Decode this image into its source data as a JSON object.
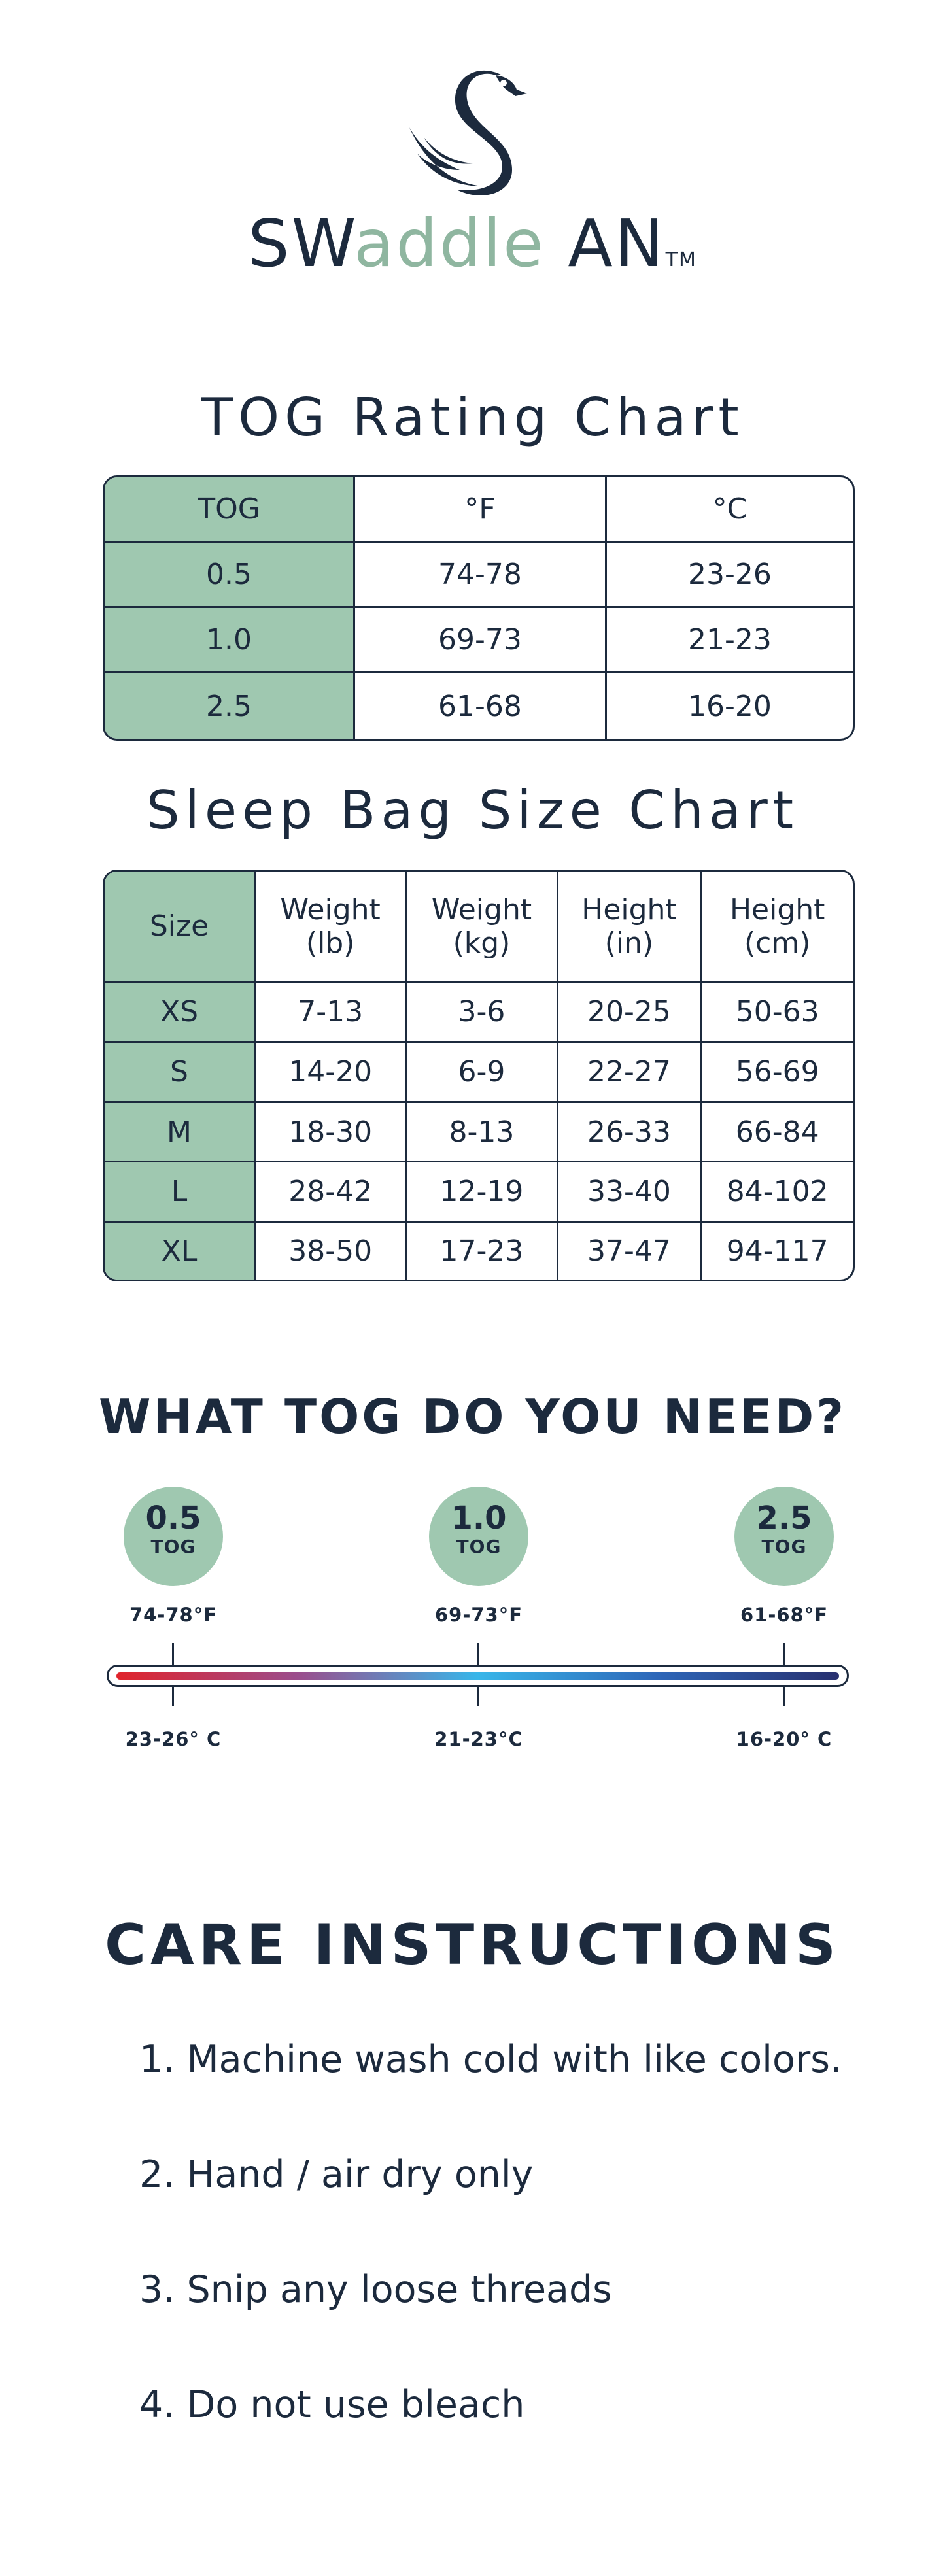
{
  "brand": {
    "name_part1": "SW",
    "name_part2": "addle",
    "name_part3": " AN",
    "trademark": "TM",
    "accent_color": "#8fb6a0",
    "text_color": "#1c2a3d",
    "logo_icon": "swan-icon"
  },
  "tog_rating_chart": {
    "title": "TOG Rating Chart",
    "headers": [
      "TOG",
      "°F",
      "°C"
    ],
    "rows": [
      [
        "0.5",
        "74-78",
        "23-26"
      ],
      [
        "1.0",
        "69-73",
        "21-23"
      ],
      [
        "2.5",
        "61-68",
        "16-20"
      ]
    ]
  },
  "size_chart": {
    "title": "Sleep Bag Size Chart",
    "headers": [
      [
        "Size",
        ""
      ],
      [
        "Weight",
        "(lb)"
      ],
      [
        "Weight",
        "(kg)"
      ],
      [
        "Height",
        "(in)"
      ],
      [
        "Height",
        "(cm)"
      ]
    ],
    "rows": [
      [
        "XS",
        "7-13",
        "3-6",
        "20-25",
        "50-63"
      ],
      [
        "S",
        "14-20",
        "6-9",
        "22-27",
        "56-69"
      ],
      [
        "M",
        "18-30",
        "8-13",
        "26-33",
        "66-84"
      ],
      [
        "L",
        "28-42",
        "12-19",
        "33-40",
        "84-102"
      ],
      [
        "XL",
        "38-50",
        "17-23",
        "37-47",
        "94-117"
      ]
    ],
    "highlight_color": "#9fc8b0"
  },
  "tog_guide": {
    "title": "WHAT TOG DO YOU NEED?",
    "points": [
      {
        "tog": "0.5",
        "unit": "TOG",
        "fahrenheit": "74-78°F",
        "celsius": "23-26° C"
      },
      {
        "tog": "1.0",
        "unit": "TOG",
        "fahrenheit": "69-73°F",
        "celsius": "21-23°C"
      },
      {
        "tog": "2.5",
        "unit": "TOG",
        "fahrenheit": "61-68°F",
        "celsius": "16-20° C"
      }
    ],
    "gradient_colors": [
      "#e0232b",
      "#38b6e9",
      "#28306f"
    ]
  },
  "care": {
    "title": "CARE INSTRUCTIONS",
    "items": [
      "1. Machine wash cold with like colors.",
      "2. Hand / air dry only",
      "3. Snip any loose threads",
      "4. Do not use bleach"
    ]
  }
}
